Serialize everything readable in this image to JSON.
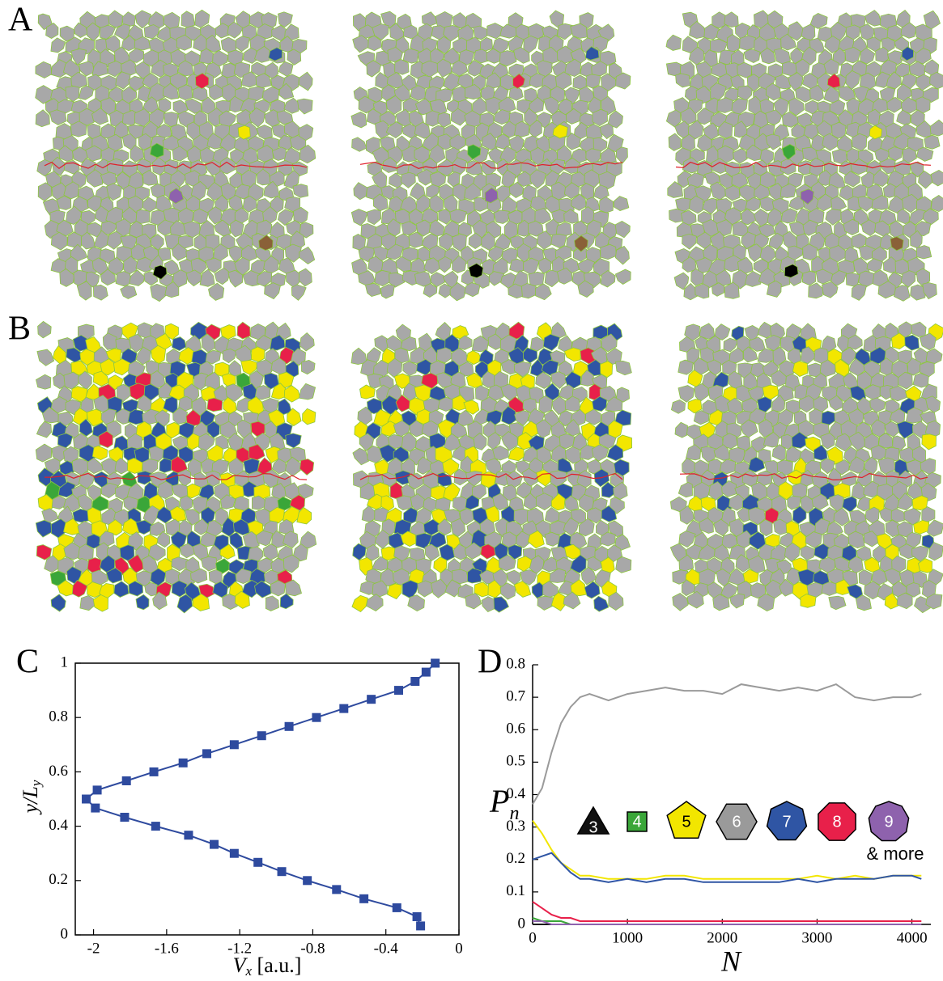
{
  "panel_labels": [
    "A",
    "B"
  ],
  "chart_data": [
    {
      "type": "line",
      "panel_label": "C",
      "xlabel": [
        "V",
        "x",
        " [a.u.]"
      ],
      "ylabel": [
        "y/L",
        "y"
      ],
      "x": [
        -0.21,
        -0.23,
        -0.34,
        -0.52,
        -0.67,
        -0.83,
        -0.97,
        -1.1,
        -1.23,
        -1.34,
        -1.48,
        -1.66,
        -1.83,
        -1.99,
        -2.04,
        -1.98,
        -1.82,
        -1.67,
        -1.51,
        -1.38,
        -1.23,
        -1.08,
        -0.93,
        -0.78,
        -0.63,
        -0.48,
        -0.33,
        -0.24,
        -0.18,
        -0.13
      ],
      "values": [
        0.033,
        0.067,
        0.1,
        0.133,
        0.167,
        0.2,
        0.233,
        0.267,
        0.3,
        0.333,
        0.367,
        0.4,
        0.433,
        0.467,
        0.5,
        0.533,
        0.567,
        0.6,
        0.633,
        0.667,
        0.7,
        0.733,
        0.767,
        0.8,
        0.833,
        0.867,
        0.9,
        0.933,
        0.967,
        1
      ],
      "color": "#2e4a9e",
      "marker": "square",
      "xlim": [
        -2.1,
        0
      ],
      "ylim": [
        0,
        1
      ],
      "xticks": [
        -2,
        -1.6,
        -1.2,
        -0.8,
        -0.4,
        0
      ],
      "yticks": [
        0,
        0.2,
        0.4,
        0.6,
        0.8,
        1
      ]
    },
    {
      "type": "line",
      "panel_label": "D",
      "xlabel": "N",
      "ylabel": [
        "P",
        "n"
      ],
      "x": [
        0,
        100,
        200,
        300,
        400,
        500,
        600,
        800,
        1000,
        1200,
        1400,
        1600,
        1800,
        2000,
        2200,
        2400,
        2600,
        2800,
        3000,
        3200,
        3400,
        3600,
        3800,
        4000,
        4100
      ],
      "series": [
        {
          "name": "3",
          "color": "#111111",
          "values": [
            0,
            0,
            0,
            0,
            0,
            0,
            0,
            0,
            0,
            0,
            0,
            0,
            0,
            0,
            0,
            0,
            0,
            0,
            0,
            0,
            0,
            0,
            0,
            0,
            0
          ]
        },
        {
          "name": "4",
          "color": "#3aa639",
          "values": [
            0.02,
            0.01,
            0.01,
            0.01,
            0,
            0,
            0,
            0,
            0,
            0,
            0,
            0,
            0,
            0,
            0,
            0,
            0,
            0,
            0,
            0,
            0,
            0,
            0,
            0,
            0
          ]
        },
        {
          "name": "5",
          "color": "#f2e600",
          "values": [
            0.32,
            0.28,
            0.23,
            0.19,
            0.17,
            0.15,
            0.15,
            0.14,
            0.14,
            0.14,
            0.15,
            0.15,
            0.14,
            0.14,
            0.14,
            0.14,
            0.14,
            0.14,
            0.15,
            0.14,
            0.15,
            0.14,
            0.15,
            0.15,
            0.15
          ]
        },
        {
          "name": "6",
          "color": "#9a9a9a",
          "values": [
            0.37,
            0.42,
            0.53,
            0.62,
            0.67,
            0.7,
            0.71,
            0.69,
            0.71,
            0.72,
            0.73,
            0.72,
            0.72,
            0.71,
            0.74,
            0.73,
            0.72,
            0.73,
            0.72,
            0.74,
            0.7,
            0.69,
            0.7,
            0.7,
            0.71
          ]
        },
        {
          "name": "7",
          "color": "#2f55a4",
          "values": [
            0.2,
            0.21,
            0.22,
            0.19,
            0.16,
            0.14,
            0.14,
            0.13,
            0.14,
            0.13,
            0.14,
            0.14,
            0.13,
            0.13,
            0.13,
            0.13,
            0.13,
            0.14,
            0.13,
            0.14,
            0.14,
            0.14,
            0.15,
            0.15,
            0.14
          ]
        },
        {
          "name": "8",
          "color": "#e8204a",
          "values": [
            0.07,
            0.05,
            0.03,
            0.02,
            0.02,
            0.01,
            0.01,
            0.01,
            0.01,
            0.01,
            0.01,
            0.01,
            0.01,
            0.01,
            0.01,
            0.01,
            0.01,
            0.01,
            0.01,
            0.01,
            0.01,
            0.01,
            0.01,
            0.01,
            0.01
          ]
        },
        {
          "name": "9",
          "color": "#8e62ad",
          "values": [
            0.01,
            0.01,
            0,
            0,
            0,
            0,
            0,
            0,
            0,
            0,
            0,
            0,
            0,
            0,
            0,
            0,
            0,
            0,
            0,
            0,
            0,
            0,
            0,
            0,
            0
          ]
        }
      ],
      "legend_note": "& more",
      "xlim": [
        0,
        4200
      ],
      "ylim": [
        0,
        0.8
      ],
      "xticks": [
        0,
        1000,
        2000,
        3000,
        4000
      ],
      "yticks": [
        0,
        0.1,
        0.2,
        0.3,
        0.4,
        0.5,
        0.6,
        0.7,
        0.8
      ]
    }
  ]
}
